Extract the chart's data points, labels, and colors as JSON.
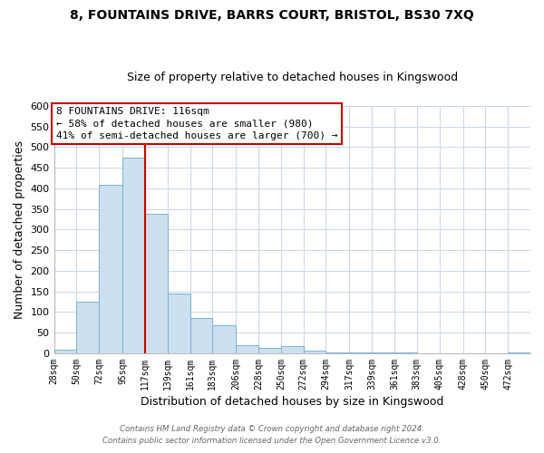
{
  "title": "8, FOUNTAINS DRIVE, BARRS COURT, BRISTOL, BS30 7XQ",
  "subtitle": "Size of property relative to detached houses in Kingswood",
  "xlabel": "Distribution of detached houses by size in Kingswood",
  "ylabel": "Number of detached properties",
  "bin_labels": [
    "28sqm",
    "50sqm",
    "72sqm",
    "95sqm",
    "117sqm",
    "139sqm",
    "161sqm",
    "183sqm",
    "206sqm",
    "228sqm",
    "250sqm",
    "272sqm",
    "294sqm",
    "317sqm",
    "339sqm",
    "361sqm",
    "383sqm",
    "405sqm",
    "428sqm",
    "450sqm",
    "472sqm"
  ],
  "bar_values": [
    8,
    125,
    408,
    475,
    338,
    145,
    85,
    68,
    20,
    12,
    17,
    6,
    2,
    2,
    1,
    1,
    0,
    0,
    0,
    0,
    2
  ],
  "bar_color": "#cce0f0",
  "bar_edge_color": "#7ab3d4",
  "vline_x": 117,
  "vline_color": "#cc0000",
  "ylim": [
    0,
    600
  ],
  "yticks": [
    0,
    50,
    100,
    150,
    200,
    250,
    300,
    350,
    400,
    450,
    500,
    550,
    600
  ],
  "annotation_title": "8 FOUNTAINS DRIVE: 116sqm",
  "annotation_line1": "← 58% of detached houses are smaller (980)",
  "annotation_line2": "41% of semi-detached houses are larger (700) →",
  "annotation_box_color": "#ffffff",
  "annotation_box_edge": "#cc0000",
  "footer1": "Contains HM Land Registry data © Crown copyright and database right 2024.",
  "footer2": "Contains public sector information licensed under the Open Government Licence v3.0.",
  "bg_color": "#ffffff",
  "grid_color": "#ccd9e8",
  "title_fontsize": 10,
  "subtitle_fontsize": 9,
  "figsize": [
    6.0,
    5.0
  ],
  "dpi": 100
}
